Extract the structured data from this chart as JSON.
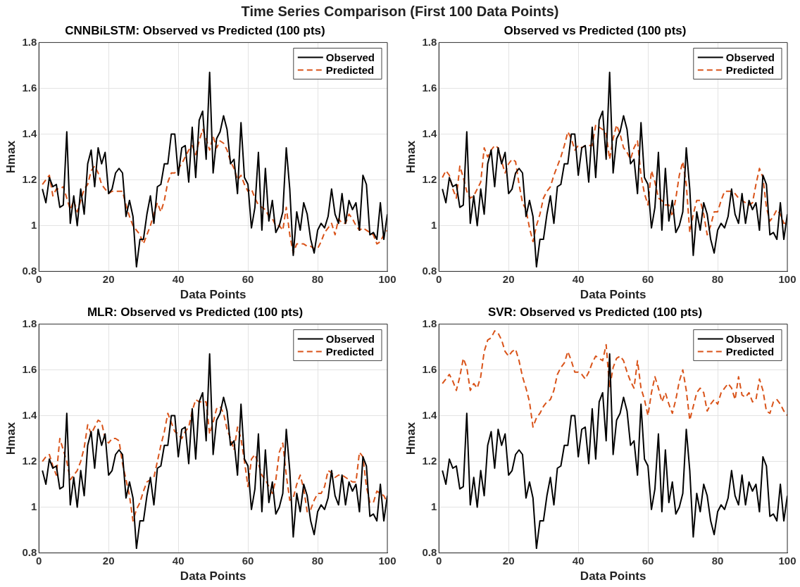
{
  "chart_data": [
    {
      "type": "line",
      "title": "CNNBiLSTM: Observed vs Predicted (100 pts)",
      "annotations": [
        "Time Series Comparison (First 100 Data Points)"
      ],
      "xlabel": "Data Points",
      "ylabel": "Hmax",
      "x": [
        1,
        2,
        3,
        4,
        5,
        6,
        7,
        8,
        9,
        10,
        11,
        12,
        13,
        14,
        15,
        16,
        17,
        18,
        19,
        20,
        21,
        22,
        23,
        24,
        25,
        26,
        27,
        28,
        29,
        30,
        31,
        32,
        33,
        34,
        35,
        36,
        37,
        38,
        39,
        40,
        41,
        42,
        43,
        44,
        45,
        46,
        47,
        48,
        49,
        50,
        51,
        52,
        53,
        54,
        55,
        56,
        57,
        58,
        59,
        60,
        61,
        62,
        63,
        64,
        65,
        66,
        67,
        68,
        69,
        70,
        71,
        72,
        73,
        74,
        75,
        76,
        77,
        78,
        79,
        80,
        81,
        82,
        83,
        84,
        85,
        86,
        87,
        88,
        89,
        90,
        91,
        92,
        93,
        94,
        95,
        96,
        97,
        98,
        99,
        100
      ],
      "xlim": [
        0,
        100
      ],
      "xticks": [
        0,
        20,
        40,
        60,
        80,
        100
      ],
      "ylim": [
        0.8,
        1.8
      ],
      "yticks": [
        0.8,
        1,
        1.2,
        1.4,
        1.6,
        1.8
      ],
      "grid": true,
      "legend": "top right",
      "series": [
        {
          "name": "Observed",
          "color": "#000000",
          "line_style": "solid",
          "values": [
            1.16,
            1.1,
            1.21,
            1.17,
            1.18,
            1.08,
            1.09,
            1.41,
            1.01,
            1.13,
            1.0,
            1.16,
            1.05,
            1.27,
            1.33,
            1.17,
            1.34,
            1.27,
            1.32,
            1.14,
            1.16,
            1.23,
            1.25,
            1.23,
            1.04,
            1.11,
            1.04,
            0.82,
            0.94,
            0.94,
            1.05,
            1.13,
            1.01,
            1.17,
            1.18,
            1.27,
            1.27,
            1.4,
            1.4,
            1.22,
            1.34,
            1.35,
            1.19,
            1.43,
            1.21,
            1.46,
            1.5,
            1.29,
            1.67,
            1.23,
            1.38,
            1.41,
            1.48,
            1.42,
            1.27,
            1.29,
            1.14,
            1.45,
            1.21,
            1.18,
            0.99,
            1.08,
            1.32,
            0.98,
            1.25,
            1.02,
            1.11,
            0.97,
            1.0,
            1.06,
            1.34,
            1.16,
            0.87,
            1.06,
            0.98,
            1.1,
            1.05,
            0.94,
            0.88,
            0.98,
            1.01,
            0.99,
            1.04,
            1.16,
            1.05,
            1.01,
            1.14,
            1.01,
            1.11,
            1.07,
            1.1,
            0.98,
            1.22,
            1.18,
            0.96,
            0.97,
            0.94,
            1.1,
            0.94,
            1.05
          ]
        },
        {
          "name": "Predicted",
          "color": "#d95319",
          "line_style": "dashed",
          "values": [
            1.18,
            1.2,
            1.22,
            1.13,
            1.16,
            1.16,
            1.17,
            1.12,
            1.07,
            1.11,
            1.06,
            1.11,
            1.16,
            1.18,
            1.24,
            1.26,
            1.23,
            1.18,
            1.16,
            1.14,
            1.15,
            1.15,
            1.15,
            1.15,
            1.09,
            1.04,
            1.0,
            0.98,
            0.96,
            0.92,
            0.96,
            1.0,
            1.05,
            1.1,
            1.06,
            1.11,
            1.19,
            1.23,
            1.23,
            1.25,
            1.27,
            1.3,
            1.33,
            1.35,
            1.31,
            1.37,
            1.42,
            1.38,
            1.33,
            1.39,
            1.34,
            1.37,
            1.36,
            1.33,
            1.28,
            1.25,
            1.2,
            1.22,
            1.18,
            1.15,
            1.16,
            1.12,
            1.09,
            1.08,
            1.07,
            1.04,
            1.03,
            1.0,
            1.0,
            0.98,
            1.08,
            0.96,
            0.88,
            0.92,
            0.92,
            0.92,
            0.91,
            0.91,
            0.9,
            0.9,
            0.93,
            0.97,
            0.99,
            1.01,
            0.96,
            1.03,
            1.01,
            1.01,
            1.05,
            1.03,
            1.0,
            0.98,
            0.99,
            0.98,
            0.97,
            0.96,
            0.92,
            0.93,
            0.96,
            0.98
          ]
        }
      ]
    },
    {
      "type": "line",
      "title": "Observed vs Predicted (100 pts)",
      "xlabel": "Data Points",
      "ylabel": "Hmax",
      "x": [
        1,
        2,
        3,
        4,
        5,
        6,
        7,
        8,
        9,
        10,
        11,
        12,
        13,
        14,
        15,
        16,
        17,
        18,
        19,
        20,
        21,
        22,
        23,
        24,
        25,
        26,
        27,
        28,
        29,
        30,
        31,
        32,
        33,
        34,
        35,
        36,
        37,
        38,
        39,
        40,
        41,
        42,
        43,
        44,
        45,
        46,
        47,
        48,
        49,
        50,
        51,
        52,
        53,
        54,
        55,
        56,
        57,
        58,
        59,
        60,
        61,
        62,
        63,
        64,
        65,
        66,
        67,
        68,
        69,
        70,
        71,
        72,
        73,
        74,
        75,
        76,
        77,
        78,
        79,
        80,
        81,
        82,
        83,
        84,
        85,
        86,
        87,
        88,
        89,
        90,
        91,
        92,
        93,
        94,
        95,
        96,
        97,
        98,
        99,
        100
      ],
      "xlim": [
        0,
        100
      ],
      "xticks": [
        0,
        20,
        40,
        60,
        80,
        100
      ],
      "ylim": [
        0.8,
        1.8
      ],
      "yticks": [
        0.8,
        1,
        1.2,
        1.4,
        1.6,
        1.8
      ],
      "grid": true,
      "legend": "top right",
      "series": [
        {
          "name": "Observed",
          "color": "#000000",
          "line_style": "solid",
          "values": [
            1.16,
            1.1,
            1.21,
            1.17,
            1.18,
            1.08,
            1.09,
            1.41,
            1.01,
            1.13,
            1.0,
            1.16,
            1.05,
            1.27,
            1.33,
            1.17,
            1.34,
            1.27,
            1.32,
            1.14,
            1.16,
            1.23,
            1.25,
            1.23,
            1.04,
            1.11,
            1.04,
            0.82,
            0.94,
            0.94,
            1.05,
            1.13,
            1.01,
            1.17,
            1.18,
            1.27,
            1.27,
            1.4,
            1.4,
            1.22,
            1.34,
            1.35,
            1.19,
            1.43,
            1.21,
            1.46,
            1.5,
            1.29,
            1.67,
            1.23,
            1.38,
            1.41,
            1.48,
            1.42,
            1.27,
            1.29,
            1.14,
            1.45,
            1.21,
            1.18,
            0.99,
            1.08,
            1.32,
            0.98,
            1.25,
            1.02,
            1.11,
            0.97,
            1.0,
            1.06,
            1.34,
            1.16,
            0.87,
            1.06,
            0.98,
            1.1,
            1.05,
            0.94,
            0.88,
            0.98,
            1.01,
            0.99,
            1.04,
            1.16,
            1.05,
            1.01,
            1.14,
            1.01,
            1.11,
            1.07,
            1.1,
            0.98,
            1.22,
            1.18,
            0.96,
            0.97,
            0.94,
            1.1,
            0.94,
            1.05
          ]
        },
        {
          "name": "Predicted",
          "color": "#d95319",
          "line_style": "dashed",
          "values": [
            1.21,
            1.24,
            1.22,
            1.16,
            1.12,
            1.26,
            1.21,
            1.15,
            1.12,
            1.13,
            1.16,
            1.19,
            1.34,
            1.3,
            1.33,
            1.35,
            1.34,
            1.28,
            1.23,
            1.27,
            1.29,
            1.28,
            1.18,
            1.1,
            1.07,
            0.99,
            0.93,
            1.0,
            1.05,
            1.12,
            1.15,
            1.17,
            1.22,
            1.26,
            1.3,
            1.35,
            1.41,
            1.38,
            1.33,
            1.35,
            1.34,
            1.35,
            1.35,
            1.35,
            1.44,
            1.43,
            1.42,
            1.4,
            1.29,
            1.38,
            1.44,
            1.4,
            1.34,
            1.32,
            1.29,
            1.34,
            1.37,
            1.22,
            1.14,
            1.09,
            1.24,
            1.19,
            1.12,
            1.11,
            1.09,
            1.09,
            1.04,
            1.12,
            1.22,
            1.28,
            1.18,
            0.97,
            1.05,
            1.11,
            1.11,
            1.05,
            0.96,
            1.0,
            1.06,
            1.06,
            1.11,
            1.15,
            1.15,
            1.15,
            1.14,
            1.12,
            1.11,
            1.1,
            1.09,
            1.1,
            1.18,
            1.25,
            1.21,
            1.08,
            1.02,
            1.04,
            1.07,
            1.05,
            1.01,
            1.01
          ]
        }
      ]
    },
    {
      "type": "line",
      "title": "MLR: Observed vs Predicted (100 pts)",
      "xlabel": "Data Points",
      "ylabel": "Hmax",
      "x": [
        1,
        2,
        3,
        4,
        5,
        6,
        7,
        8,
        9,
        10,
        11,
        12,
        13,
        14,
        15,
        16,
        17,
        18,
        19,
        20,
        21,
        22,
        23,
        24,
        25,
        26,
        27,
        28,
        29,
        30,
        31,
        32,
        33,
        34,
        35,
        36,
        37,
        38,
        39,
        40,
        41,
        42,
        43,
        44,
        45,
        46,
        47,
        48,
        49,
        50,
        51,
        52,
        53,
        54,
        55,
        56,
        57,
        58,
        59,
        60,
        61,
        62,
        63,
        64,
        65,
        66,
        67,
        68,
        69,
        70,
        71,
        72,
        73,
        74,
        75,
        76,
        77,
        78,
        79,
        80,
        81,
        82,
        83,
        84,
        85,
        86,
        87,
        88,
        89,
        90,
        91,
        92,
        93,
        94,
        95,
        96,
        97,
        98,
        99,
        100
      ],
      "xlim": [
        0,
        100
      ],
      "xticks": [
        0,
        20,
        40,
        60,
        80,
        100
      ],
      "ylim": [
        0.8,
        1.8
      ],
      "yticks": [
        0.8,
        1,
        1.2,
        1.4,
        1.6,
        1.8
      ],
      "grid": true,
      "legend": "top right",
      "series": [
        {
          "name": "Observed",
          "color": "#000000",
          "line_style": "solid",
          "values": [
            1.16,
            1.1,
            1.21,
            1.17,
            1.18,
            1.08,
            1.09,
            1.41,
            1.01,
            1.13,
            1.0,
            1.16,
            1.05,
            1.27,
            1.33,
            1.17,
            1.34,
            1.27,
            1.32,
            1.14,
            1.16,
            1.23,
            1.25,
            1.23,
            1.04,
            1.11,
            1.04,
            0.82,
            0.94,
            0.94,
            1.05,
            1.13,
            1.01,
            1.17,
            1.18,
            1.27,
            1.27,
            1.4,
            1.4,
            1.22,
            1.34,
            1.35,
            1.19,
            1.43,
            1.21,
            1.46,
            1.5,
            1.29,
            1.67,
            1.23,
            1.38,
            1.41,
            1.48,
            1.42,
            1.27,
            1.29,
            1.14,
            1.45,
            1.21,
            1.18,
            0.99,
            1.08,
            1.32,
            0.98,
            1.25,
            1.02,
            1.11,
            0.97,
            1.0,
            1.06,
            1.34,
            1.16,
            0.87,
            1.06,
            0.98,
            1.1,
            1.05,
            0.94,
            0.88,
            0.98,
            1.01,
            0.99,
            1.04,
            1.16,
            1.05,
            1.01,
            1.14,
            1.01,
            1.11,
            1.07,
            1.1,
            0.98,
            1.22,
            1.18,
            0.96,
            0.97,
            0.94,
            1.1,
            0.94,
            1.05
          ]
        },
        {
          "name": "Predicted",
          "color": "#d95319",
          "line_style": "dashed",
          "values": [
            1.2,
            1.22,
            1.23,
            1.18,
            1.14,
            1.3,
            1.25,
            1.2,
            1.12,
            1.14,
            1.16,
            1.2,
            1.26,
            1.36,
            1.32,
            1.35,
            1.38,
            1.37,
            1.3,
            1.28,
            1.3,
            1.3,
            1.29,
            1.19,
            1.12,
            1.05,
            0.94,
            0.99,
            1.02,
            1.07,
            1.11,
            1.12,
            1.13,
            1.2,
            1.27,
            1.33,
            1.41,
            1.37,
            1.33,
            1.32,
            1.3,
            1.33,
            1.35,
            1.42,
            1.47,
            1.46,
            1.46,
            1.46,
            1.32,
            1.37,
            1.43,
            1.44,
            1.41,
            1.34,
            1.3,
            1.25,
            1.35,
            1.3,
            1.2,
            1.09,
            1.21,
            1.23,
            1.19,
            1.14,
            1.12,
            1.09,
            1.06,
            1.12,
            1.24,
            1.28,
            1.14,
            1.03,
            1.04,
            1.1,
            1.14,
            1.08,
            0.98,
            0.99,
            1.03,
            1.06,
            1.06,
            1.09,
            1.16,
            1.15,
            1.13,
            1.14,
            1.14,
            1.13,
            1.12,
            1.11,
            1.11,
            1.24,
            1.22,
            1.09,
            1.02,
            1.02,
            1.07,
            1.06,
            1.05,
            1.02
          ]
        }
      ]
    },
    {
      "type": "line",
      "title": "SVR: Observed vs Predicted (100 pts)",
      "xlabel": "Data Points",
      "ylabel": "Hmax",
      "x": [
        1,
        2,
        3,
        4,
        5,
        6,
        7,
        8,
        9,
        10,
        11,
        12,
        13,
        14,
        15,
        16,
        17,
        18,
        19,
        20,
        21,
        22,
        23,
        24,
        25,
        26,
        27,
        28,
        29,
        30,
        31,
        32,
        33,
        34,
        35,
        36,
        37,
        38,
        39,
        40,
        41,
        42,
        43,
        44,
        45,
        46,
        47,
        48,
        49,
        50,
        51,
        52,
        53,
        54,
        55,
        56,
        57,
        58,
        59,
        60,
        61,
        62,
        63,
        64,
        65,
        66,
        67,
        68,
        69,
        70,
        71,
        72,
        73,
        74,
        75,
        76,
        77,
        78,
        79,
        80,
        81,
        82,
        83,
        84,
        85,
        86,
        87,
        88,
        89,
        90,
        91,
        92,
        93,
        94,
        95,
        96,
        97,
        98,
        99,
        100
      ],
      "xlim": [
        0,
        100
      ],
      "xticks": [
        0,
        20,
        40,
        60,
        80,
        100
      ],
      "ylim": [
        0.8,
        1.8
      ],
      "yticks": [
        0.8,
        1,
        1.2,
        1.4,
        1.6,
        1.8
      ],
      "grid": true,
      "legend": "top right",
      "series": [
        {
          "name": "Observed",
          "color": "#000000",
          "line_style": "solid",
          "values": [
            1.16,
            1.1,
            1.21,
            1.17,
            1.18,
            1.08,
            1.09,
            1.41,
            1.01,
            1.13,
            1.0,
            1.16,
            1.05,
            1.27,
            1.33,
            1.17,
            1.34,
            1.27,
            1.32,
            1.14,
            1.16,
            1.23,
            1.25,
            1.23,
            1.04,
            1.11,
            1.04,
            0.82,
            0.94,
            0.94,
            1.05,
            1.13,
            1.01,
            1.17,
            1.18,
            1.27,
            1.27,
            1.4,
            1.4,
            1.22,
            1.34,
            1.35,
            1.19,
            1.43,
            1.21,
            1.46,
            1.5,
            1.29,
            1.67,
            1.23,
            1.38,
            1.41,
            1.48,
            1.42,
            1.27,
            1.29,
            1.14,
            1.45,
            1.21,
            1.18,
            0.99,
            1.08,
            1.32,
            0.98,
            1.25,
            1.02,
            1.11,
            0.97,
            1.0,
            1.06,
            1.34,
            1.16,
            0.87,
            1.06,
            0.98,
            1.1,
            1.05,
            0.94,
            0.88,
            0.98,
            1.01,
            0.99,
            1.04,
            1.16,
            1.05,
            1.01,
            1.14,
            1.01,
            1.11,
            1.07,
            1.1,
            0.98,
            1.22,
            1.18,
            0.96,
            0.97,
            0.94,
            1.1,
            0.94,
            1.05
          ]
        },
        {
          "name": "Predicted",
          "color": "#d95319",
          "line_style": "dashed",
          "values": [
            1.54,
            1.56,
            1.58,
            1.55,
            1.51,
            1.57,
            1.65,
            1.61,
            1.51,
            1.54,
            1.52,
            1.57,
            1.68,
            1.73,
            1.74,
            1.77,
            1.76,
            1.73,
            1.68,
            1.66,
            1.68,
            1.69,
            1.64,
            1.57,
            1.52,
            1.46,
            1.35,
            1.39,
            1.41,
            1.44,
            1.46,
            1.47,
            1.51,
            1.58,
            1.61,
            1.63,
            1.68,
            1.64,
            1.59,
            1.59,
            1.58,
            1.56,
            1.59,
            1.63,
            1.66,
            1.65,
            1.64,
            1.71,
            1.52,
            1.61,
            1.65,
            1.66,
            1.64,
            1.59,
            1.55,
            1.52,
            1.64,
            1.52,
            1.47,
            1.4,
            1.5,
            1.57,
            1.52,
            1.46,
            1.5,
            1.45,
            1.41,
            1.47,
            1.55,
            1.6,
            1.51,
            1.38,
            1.44,
            1.5,
            1.52,
            1.5,
            1.42,
            1.45,
            1.47,
            1.45,
            1.5,
            1.52,
            1.54,
            1.52,
            1.47,
            1.57,
            1.49,
            1.48,
            1.5,
            1.46,
            1.47,
            1.56,
            1.51,
            1.42,
            1.41,
            1.46,
            1.47,
            1.45,
            1.42,
            1.4
          ]
        }
      ]
    }
  ]
}
